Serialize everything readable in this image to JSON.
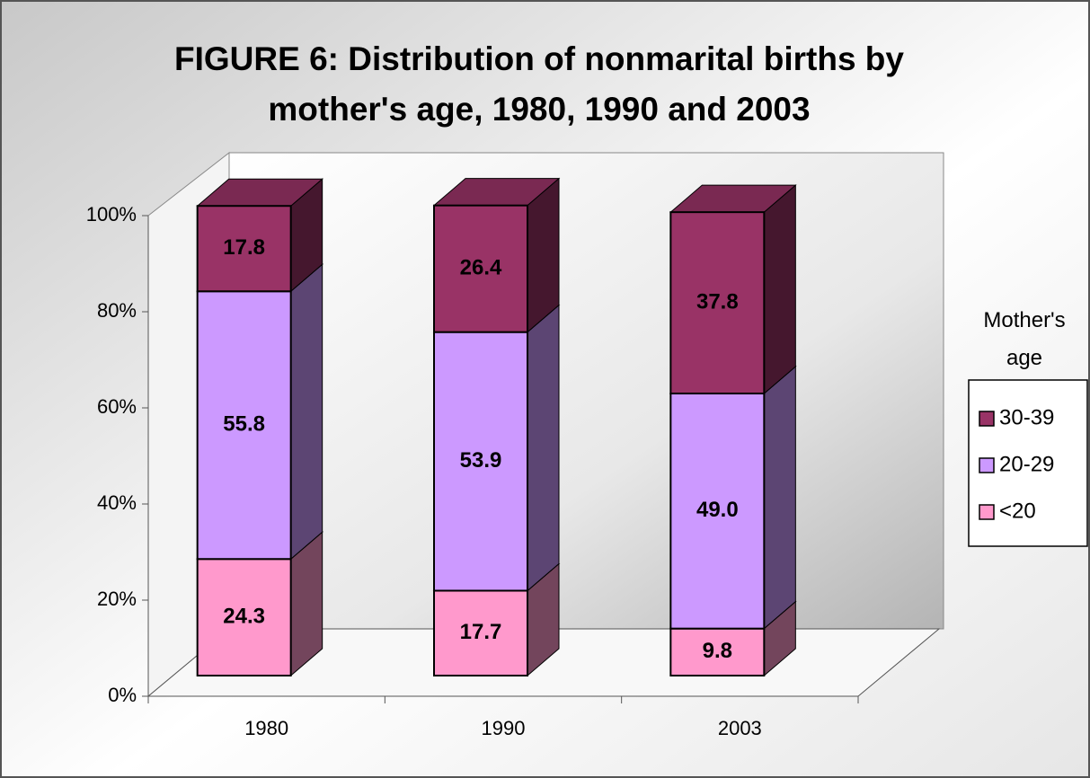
{
  "chart_data": {
    "type": "bar3d_stacked",
    "title": "FIGURE 6: Distribution of nonmarital births by mother's age,  1980, 1990 and 2003",
    "categories": [
      "1980",
      "1990",
      "2003"
    ],
    "series": [
      {
        "name": "<20",
        "color": "#ff99cc",
        "values": [
          24.3,
          17.7,
          9.8
        ]
      },
      {
        "name": "20-29",
        "color": "#cc99ff",
        "values": [
          55.8,
          53.9,
          49.0
        ],
        "value_labels": [
          "55.8",
          "53.9",
          "49.0"
        ]
      },
      {
        "name": "30-39",
        "color": "#993366",
        "values": [
          17.8,
          26.4,
          37.8
        ]
      }
    ],
    "ylim": [
      0,
      100
    ],
    "yticks": [
      {
        "value": 0,
        "label": "0%"
      },
      {
        "value": 20,
        "label": "20%"
      },
      {
        "value": 40,
        "label": "40%"
      },
      {
        "value": 60,
        "label": "60%"
      },
      {
        "value": 80,
        "label": "80%"
      },
      {
        "value": 100,
        "label": "100%"
      }
    ],
    "legend_title": "Mother's age",
    "legend": "right",
    "grid": false
  }
}
